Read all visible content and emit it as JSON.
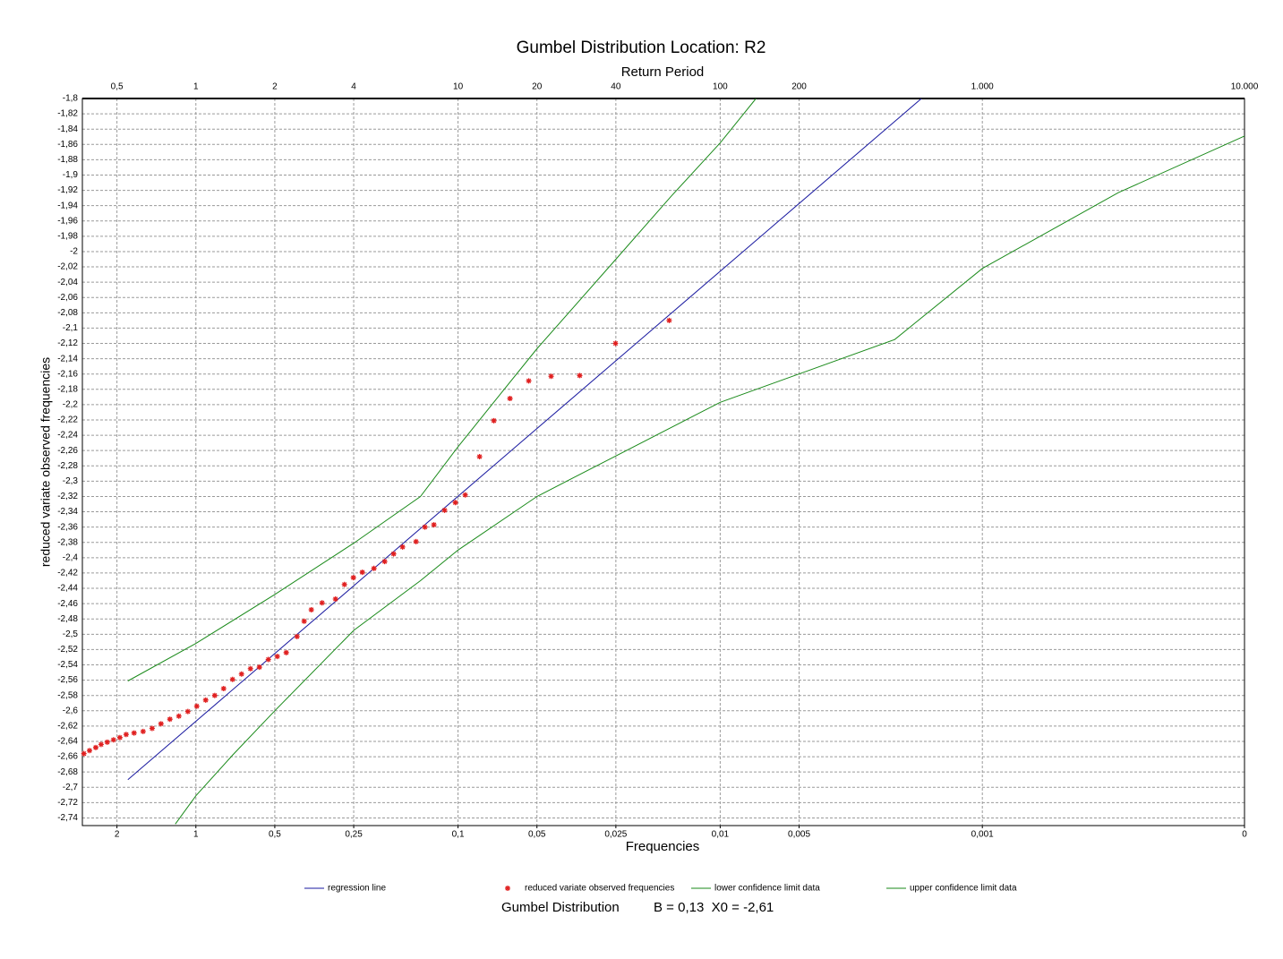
{
  "chart_data": {
    "type": "scatter",
    "title": "Gumbel Distribution Location: R2",
    "top_axis_label": "Return Period",
    "xlabel": "Frequencies",
    "ylabel": "reduced variate observed frequencies",
    "footer_label": "Gumbel Distribution",
    "footer_params": "B = 0,13  X0 = -2,61",
    "xscale": "log",
    "grid": true,
    "xlim": [
      0.369,
      10000
    ],
    "ylim": [
      -2.75,
      -1.8
    ],
    "xticks": [
      {
        "value": 0.5,
        "label": "0,5"
      },
      1,
      2,
      4,
      10,
      20,
      40,
      100,
      200,
      {
        "value": 1000,
        "label": "1.000"
      },
      {
        "value": 10000,
        "label": "10.000"
      }
    ],
    "freq_ticks": [
      {
        "value": 0.5,
        "label": "2"
      },
      {
        "value": 1,
        "label": "1"
      },
      {
        "value": 2,
        "label": "0,5"
      },
      {
        "value": 4,
        "label": "0,25"
      },
      {
        "value": 10,
        "label": "0,1"
      },
      {
        "value": 20,
        "label": "0,05"
      },
      {
        "value": 40,
        "label": "0,025"
      },
      {
        "value": 100,
        "label": "0,01"
      },
      {
        "value": 200,
        "label": "0,005"
      },
      {
        "value": 1000,
        "label": "0,001"
      },
      {
        "value": 10000,
        "label": "0"
      }
    ],
    "yticks": [
      {
        "value": -1.8,
        "label": "-1,8"
      },
      {
        "value": -1.82,
        "label": "-1,82"
      },
      {
        "value": -1.84,
        "label": "-1,84"
      },
      {
        "value": -1.86,
        "label": "-1,86"
      },
      {
        "value": -1.88,
        "label": "-1,88"
      },
      {
        "value": -1.9,
        "label": "-1,9"
      },
      {
        "value": -1.92,
        "label": "-1,92"
      },
      {
        "value": -1.94,
        "label": "-1,94"
      },
      {
        "value": -1.96,
        "label": "-1,96"
      },
      {
        "value": -1.98,
        "label": "-1,98"
      },
      -2,
      {
        "value": -2.02,
        "label": "-2,02"
      },
      {
        "value": -2.04,
        "label": "-2,04"
      },
      {
        "value": -2.06,
        "label": "-2,06"
      },
      {
        "value": -2.08,
        "label": "-2,08"
      },
      {
        "value": -2.1,
        "label": "-2,1"
      },
      {
        "value": -2.12,
        "label": "-2,12"
      },
      {
        "value": -2.14,
        "label": "-2,14"
      },
      {
        "value": -2.16,
        "label": "-2,16"
      },
      {
        "value": -2.18,
        "label": "-2,18"
      },
      {
        "value": -2.2,
        "label": "-2,2"
      },
      {
        "value": -2.22,
        "label": "-2,22"
      },
      {
        "value": -2.24,
        "label": "-2,24"
      },
      {
        "value": -2.26,
        "label": "-2,26"
      },
      {
        "value": -2.28,
        "label": "-2,28"
      },
      {
        "value": -2.3,
        "label": "-2,3"
      },
      {
        "value": -2.32,
        "label": "-2,32"
      },
      {
        "value": -2.34,
        "label": "-2,34"
      },
      {
        "value": -2.36,
        "label": "-2,36"
      },
      {
        "value": -2.38,
        "label": "-2,38"
      },
      {
        "value": -2.4,
        "label": "-2,4"
      },
      {
        "value": -2.42,
        "label": "-2,42"
      },
      {
        "value": -2.44,
        "label": "-2,44"
      },
      {
        "value": -2.46,
        "label": "-2,46"
      },
      {
        "value": -2.48,
        "label": "-2,48"
      },
      {
        "value": -2.5,
        "label": "-2,5"
      },
      {
        "value": -2.52,
        "label": "-2,52"
      },
      {
        "value": -2.54,
        "label": "-2,54"
      },
      {
        "value": -2.56,
        "label": "-2,56"
      },
      {
        "value": -2.58,
        "label": "-2,58"
      },
      {
        "value": -2.6,
        "label": "-2,6"
      },
      {
        "value": -2.62,
        "label": "-2,62"
      },
      {
        "value": -2.64,
        "label": "-2,64"
      },
      {
        "value": -2.66,
        "label": "-2,66"
      },
      {
        "value": -2.68,
        "label": "-2,68"
      },
      {
        "value": -2.7,
        "label": "-2,7"
      },
      {
        "value": -2.72,
        "label": "-2,72"
      },
      {
        "value": -2.74,
        "label": "-2,74"
      }
    ],
    "series": [
      {
        "name": "regression line",
        "style": "line",
        "color": "#1a1aa0",
        "x": [
          0.55,
          586
        ],
        "y": [
          -2.69,
          -1.8
        ]
      },
      {
        "name": "reduced variate observed frequencies",
        "style": "marker",
        "color": "#e02020",
        "x": [
          0.374,
          0.393,
          0.415,
          0.435,
          0.459,
          0.485,
          0.513,
          0.542,
          0.581,
          0.629,
          0.681,
          0.736,
          0.796,
          0.861,
          0.932,
          1.008,
          1.09,
          1.18,
          1.276,
          1.38,
          1.493,
          1.615,
          1.747,
          1.89,
          2.044,
          2.211,
          2.431,
          2.588,
          2.756,
          3.029,
          3.408,
          3.687,
          3.988,
          4.313,
          4.778,
          5.251,
          5.679,
          6.143,
          6.914,
          7.476,
          8.089,
          8.888,
          9.768,
          10.65,
          12.08,
          13.7,
          15.78,
          18.61,
          22.65,
          29.12,
          39.88,
          63.9
        ],
        "y": [
          -2.656,
          -2.652,
          -2.648,
          -2.644,
          -2.641,
          -2.638,
          -2.635,
          -2.631,
          -2.629,
          -2.627,
          -2.623,
          -2.617,
          -2.611,
          -2.607,
          -2.601,
          -2.594,
          -2.586,
          -2.58,
          -2.571,
          -2.559,
          -2.552,
          -2.545,
          -2.543,
          -2.533,
          -2.529,
          -2.524,
          -2.503,
          -2.483,
          -2.468,
          -2.459,
          -2.454,
          -2.435,
          -2.426,
          -2.419,
          -2.414,
          -2.405,
          -2.395,
          -2.386,
          -2.379,
          -2.36,
          -2.357,
          -2.338,
          -2.328,
          -2.318,
          -2.268,
          -2.221,
          -2.192,
          -2.169,
          -2.163,
          -2.162,
          -2.12,
          -2.09
        ]
      },
      {
        "name": "lower confidence limit data",
        "style": "line",
        "color": "#1a8a1a",
        "x": [
          0.55,
          1,
          2,
          4,
          7.19,
          10,
          14.6,
          20,
          40,
          64.9,
          100,
          137
        ],
        "y": [
          -2.561,
          -2.512,
          -2.448,
          -2.381,
          -2.32,
          -2.255,
          -2.185,
          -2.127,
          -2.01,
          -1.928,
          -1.858,
          -1.8
        ]
      },
      {
        "name": "upper confidence limit data",
        "style": "line",
        "color": "#1a8a1a",
        "x": [
          0.835,
          1,
          1.38,
          2,
          4,
          7.19,
          10,
          20,
          40,
          100,
          463,
          1000,
          3304,
          10000
        ],
        "y": [
          -2.748,
          -2.711,
          -2.658,
          -2.6,
          -2.495,
          -2.43,
          -2.39,
          -2.32,
          -2.267,
          -2.197,
          -2.115,
          -2.022,
          -1.923,
          -1.849
        ]
      }
    ]
  }
}
